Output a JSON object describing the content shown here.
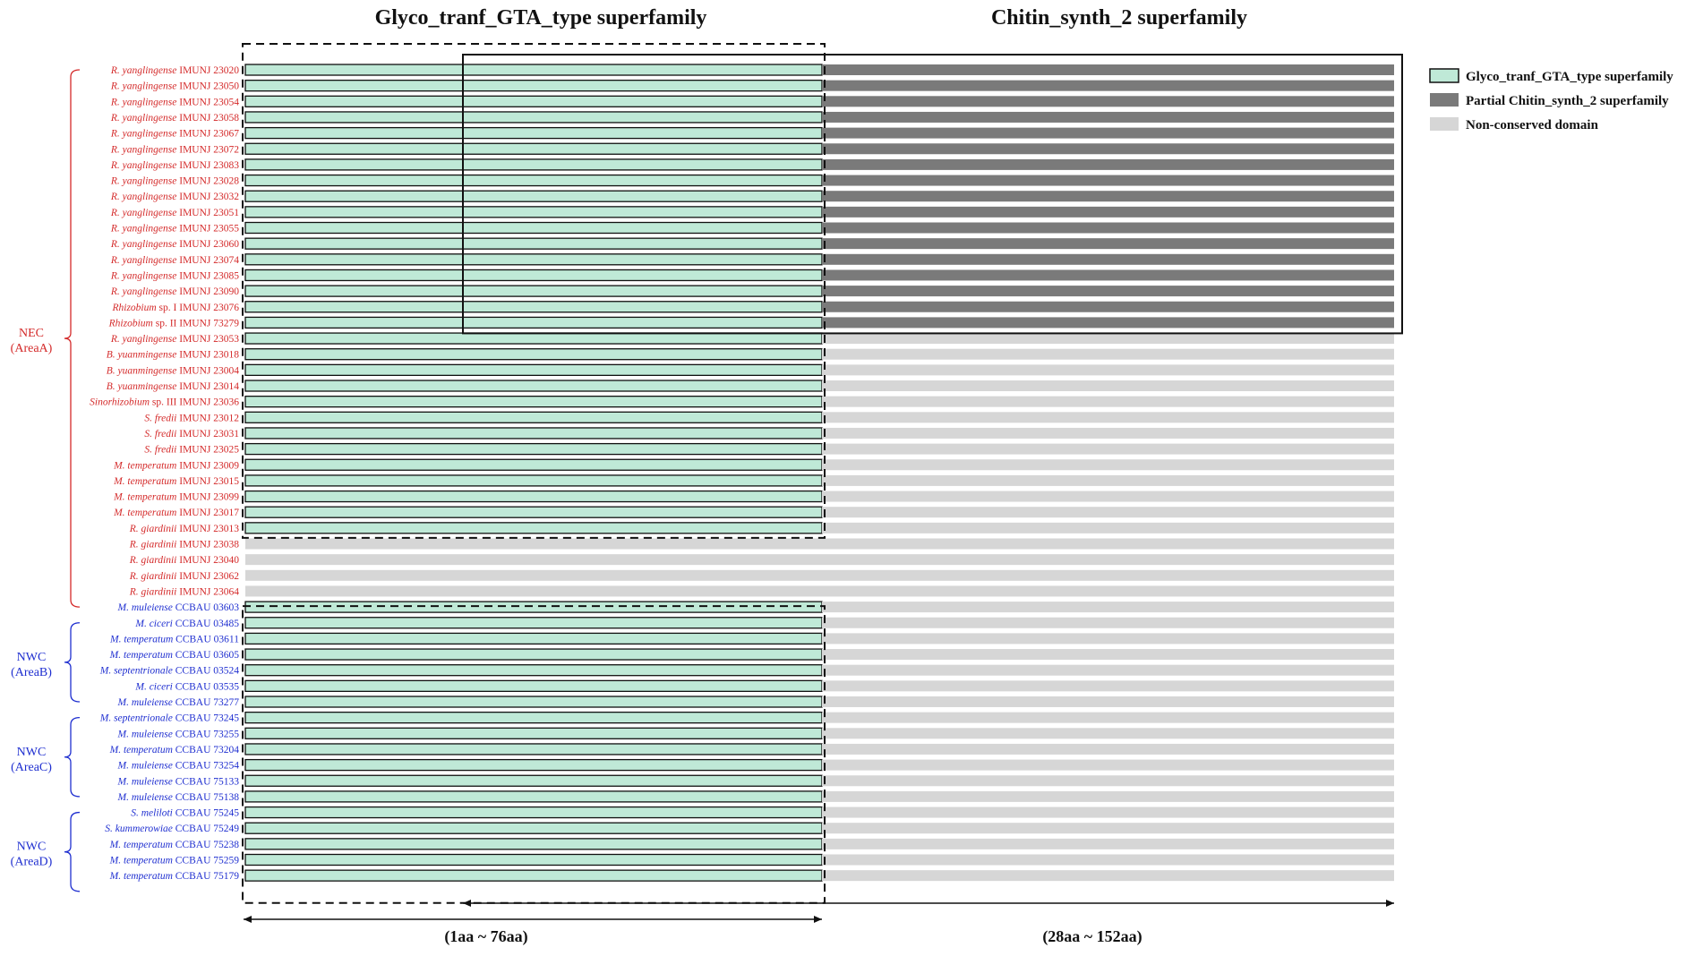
{
  "header": {
    "left_title": "Glyco_tranf_GTA_type superfamily",
    "right_title": "Chitin_synth_2 superfamily"
  },
  "colors": {
    "gta": "#bfe9d7",
    "chitin": "#7a7a7a",
    "nonconserved": "#d6d6d6",
    "nec_text": "#d42a2a",
    "nwc_text": "#1f2fd0"
  },
  "legend": [
    {
      "label": "Glyco_tranf_GTA_type superfamily",
      "kind": "gta"
    },
    {
      "label": "Partial Chitin_synth_2 superfamily",
      "kind": "chitin"
    },
    {
      "label": "Non-conserved domain",
      "kind": "nonconserved"
    }
  ],
  "groups": [
    {
      "label_line1": "NEC",
      "label_line2": "(AreaA)",
      "first": 0,
      "last": 34,
      "color_key": "nec_text"
    },
    {
      "label_line1": "NWC",
      "label_line2": "(AreaB)",
      "first": 35,
      "last": 40,
      "color_key": "nwc_text"
    },
    {
      "label_line1": "NWC",
      "label_line2": "(AreaC)",
      "first": 41,
      "last": 46,
      "color_key": "nwc_text"
    },
    {
      "label_line1": "NWC",
      "label_line2": "(AreaD)",
      "first": 47,
      "last": 52,
      "color_key": "nwc_text"
    }
  ],
  "strains": [
    {
      "species": "R. yanglingense",
      "strain": "IMUNJ 23020",
      "domains": "gta+chitin",
      "group": "NEC"
    },
    {
      "species": "R. yanglingense",
      "strain": "IMUNJ 23050",
      "domains": "gta+chitin",
      "group": "NEC"
    },
    {
      "species": "R. yanglingense",
      "strain": "IMUNJ 23054",
      "domains": "gta+chitin",
      "group": "NEC"
    },
    {
      "species": "R. yanglingense",
      "strain": "IMUNJ 23058",
      "domains": "gta+chitin",
      "group": "NEC"
    },
    {
      "species": "R. yanglingense",
      "strain": "IMUNJ 23067",
      "domains": "gta+chitin",
      "group": "NEC"
    },
    {
      "species": "R. yanglingense",
      "strain": "IMUNJ 23072",
      "domains": "gta+chitin",
      "group": "NEC"
    },
    {
      "species": "R. yanglingense",
      "strain": "IMUNJ 23083",
      "domains": "gta+chitin",
      "group": "NEC"
    },
    {
      "species": "R. yanglingense",
      "strain": "IMUNJ 23028",
      "domains": "gta+chitin",
      "group": "NEC"
    },
    {
      "species": "R. yanglingense",
      "strain": "IMUNJ 23032",
      "domains": "gta+chitin",
      "group": "NEC"
    },
    {
      "species": "R. yanglingense",
      "strain": "IMUNJ 23051",
      "domains": "gta+chitin",
      "group": "NEC"
    },
    {
      "species": "R. yanglingense",
      "strain": "IMUNJ 23055",
      "domains": "gta+chitin",
      "group": "NEC"
    },
    {
      "species": "R. yanglingense",
      "strain": "IMUNJ 23060",
      "domains": "gta+chitin",
      "group": "NEC"
    },
    {
      "species": "R. yanglingense",
      "strain": "IMUNJ 23074",
      "domains": "gta+chitin",
      "group": "NEC"
    },
    {
      "species": "R. yanglingense",
      "strain": "IMUNJ 23085",
      "domains": "gta+chitin",
      "group": "NEC"
    },
    {
      "species": "R. yanglingense",
      "strain": "IMUNJ 23090",
      "domains": "gta+chitin",
      "group": "NEC"
    },
    {
      "species": "Rhizobium",
      "suffix": "sp. I",
      "strain": "IMUNJ 23076",
      "domains": "gta+chitin",
      "group": "NEC"
    },
    {
      "species": "Rhizobium",
      "suffix": "sp. II",
      "strain": "IMUNJ 73279",
      "domains": "gta+chitin",
      "group": "NEC"
    },
    {
      "species": "R. yanglingense",
      "strain": "IMUNJ 23053",
      "domains": "gta",
      "group": "NEC"
    },
    {
      "species": "B. yuanmingense",
      "strain": "IMUNJ 23018",
      "domains": "gta",
      "group": "NEC"
    },
    {
      "species": "B. yuanmingense",
      "strain": "IMUNJ 23004",
      "domains": "gta",
      "group": "NEC"
    },
    {
      "species": "B. yuanmingense",
      "strain": "IMUNJ 23014",
      "domains": "gta",
      "group": "NEC"
    },
    {
      "species": "Sinorhizobium",
      "suffix": "sp. III",
      "strain": "IMUNJ 23036",
      "domains": "gta",
      "group": "NEC"
    },
    {
      "species": "S. fredii",
      "strain": "IMUNJ 23012",
      "domains": "gta",
      "group": "NEC"
    },
    {
      "species": "S. fredii",
      "strain": "IMUNJ 23031",
      "domains": "gta",
      "group": "NEC"
    },
    {
      "species": "S. fredii",
      "strain": "IMUNJ 23025",
      "domains": "gta",
      "group": "NEC"
    },
    {
      "species": "M. temperatum",
      "strain": "IMUNJ 23009",
      "domains": "gta",
      "group": "NEC"
    },
    {
      "species": "M. temperatum",
      "strain": "IMUNJ 23015",
      "domains": "gta",
      "group": "NEC"
    },
    {
      "species": "M. temperatum",
      "strain": "IMUNJ 23099",
      "domains": "gta",
      "group": "NEC"
    },
    {
      "species": "M. temperatum",
      "strain": "IMUNJ 23017",
      "domains": "gta",
      "group": "NEC"
    },
    {
      "species": "R. giardinii",
      "strain": "IMUNJ 23013",
      "domains": "gta",
      "group": "NEC"
    },
    {
      "species": "R. giardinii",
      "strain": "IMUNJ 23038",
      "domains": "none",
      "group": "NEC"
    },
    {
      "species": "R. giardinii",
      "strain": "IMUNJ 23040",
      "domains": "none",
      "group": "NEC"
    },
    {
      "species": "R. giardinii",
      "strain": "IMUNJ 23062",
      "domains": "none",
      "group": "NEC"
    },
    {
      "species": "R. giardinii",
      "strain": "IMUNJ 23064",
      "domains": "none",
      "group": "NEC"
    },
    {
      "species": "M. muleiense",
      "strain": "CCBAU 03603",
      "domains": "gta",
      "group": "NWC"
    },
    {
      "species": "M. ciceri",
      "strain": "CCBAU 03485",
      "domains": "gta",
      "group": "NWC"
    },
    {
      "species": "M. temperatum",
      "strain": "CCBAU 03611",
      "domains": "gta",
      "group": "NWC"
    },
    {
      "species": "M. temperatum",
      "strain": "CCBAU 03605",
      "domains": "gta",
      "group": "NWC"
    },
    {
      "species": "M. septentrionale",
      "strain": "CCBAU 03524",
      "domains": "gta",
      "group": "NWC"
    },
    {
      "species": "M. ciceri",
      "strain": "CCBAU 03535",
      "domains": "gta",
      "group": "NWC"
    },
    {
      "species": "M. muleiense",
      "strain": "CCBAU 73277",
      "domains": "gta",
      "group": "NWC"
    },
    {
      "species": "M. septentrionale",
      "strain": "CCBAU 73245",
      "domains": "gta",
      "group": "NWC"
    },
    {
      "species": "M. muleiense",
      "strain": "CCBAU 73255",
      "domains": "gta",
      "group": "NWC"
    },
    {
      "species": "M. temperatum",
      "strain": "CCBAU 73204",
      "domains": "gta",
      "group": "NWC"
    },
    {
      "species": "M. muleiense",
      "strain": "CCBAU 73254",
      "domains": "gta",
      "group": "NWC"
    },
    {
      "species": "M. muleiense",
      "strain": "CCBAU 75133",
      "domains": "gta",
      "group": "NWC"
    },
    {
      "species": "M. muleiense",
      "strain": "CCBAU 75138",
      "domains": "gta",
      "group": "NWC"
    },
    {
      "species": "S. meliloti",
      "strain": "CCBAU 75245",
      "domains": "gta",
      "group": "NWC"
    },
    {
      "species": "S. kummerowiae",
      "strain": "CCBAU 75249",
      "domains": "gta",
      "group": "NWC"
    },
    {
      "species": "M. temperatum",
      "strain": "CCBAU 75238",
      "domains": "gta",
      "group": "NWC"
    },
    {
      "species": "M. temperatum",
      "strain": "CCBAU 75259",
      "domains": "gta",
      "group": "NWC"
    },
    {
      "species": "M. temperatum",
      "strain": "CCBAU 75179",
      "domains": "gta",
      "group": "NWC"
    }
  ],
  "ranges": {
    "left_label": "(1aa ~ 76aa)",
    "right_label": "(28aa ~ 152aa)"
  }
}
